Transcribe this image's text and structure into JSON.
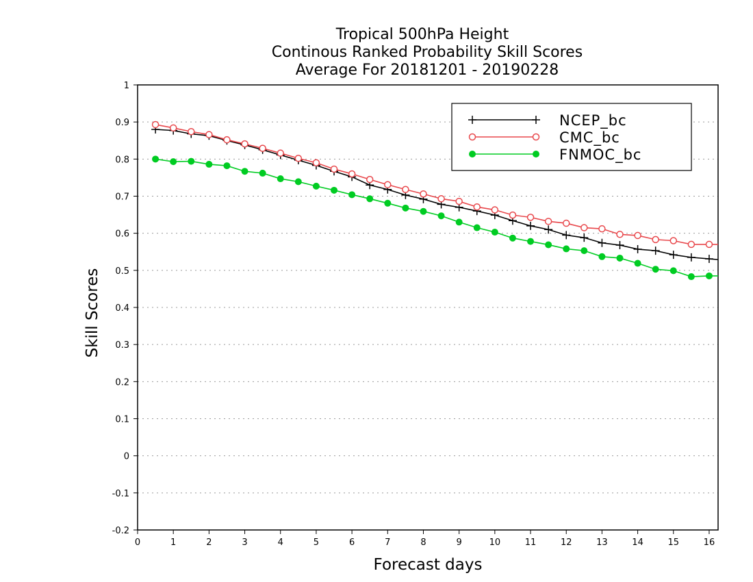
{
  "chart_data": {
    "type": "line",
    "title": [
      "Tropical 500hPa Height",
      "Continous Ranked Probability Skill Scores",
      "Average For 20181201 - 20190228"
    ],
    "xlabel": "Forecast days",
    "ylabel": "Skill Scores",
    "xlim": [
      0,
      16.25
    ],
    "ylim": [
      -0.2,
      1
    ],
    "xticks": [
      0,
      1,
      2,
      3,
      4,
      5,
      6,
      7,
      8,
      9,
      10,
      11,
      12,
      13,
      14,
      15,
      16
    ],
    "yticks": [
      -0.2,
      -0.1,
      0,
      0.1,
      0.2,
      0.3,
      0.4,
      0.5,
      0.6,
      0.7,
      0.8,
      0.9,
      1
    ],
    "ytick_labels": [
      "-0.2",
      "-0.1",
      "0",
      "0.1",
      "0.2",
      "0.3",
      "0.4",
      "0.5",
      "0.6",
      "0.7",
      "0.8",
      "0.9",
      "1"
    ],
    "grid": "horizontal dotted",
    "legend_position": "top-right",
    "x": [
      0.5,
      1,
      1.5,
      2,
      2.5,
      3,
      3.5,
      4,
      4.5,
      5,
      5.5,
      6,
      6.5,
      7,
      7.5,
      8,
      8.5,
      9,
      9.5,
      10,
      10.5,
      11,
      11.5,
      12,
      12.5,
      13,
      13.5,
      14,
      14.5,
      15,
      15.5,
      16,
      16.25
    ],
    "series": [
      {
        "name": "NCEP_bc",
        "color": "#000000",
        "marker": "plus",
        "values": [
          0.88,
          0.877,
          0.868,
          0.863,
          0.85,
          0.838,
          0.825,
          0.811,
          0.797,
          0.783,
          0.767,
          0.752,
          0.73,
          0.718,
          0.703,
          0.692,
          0.678,
          0.67,
          0.66,
          0.649,
          0.634,
          0.62,
          0.61,
          0.595,
          0.588,
          0.574,
          0.568,
          0.557,
          0.553,
          0.542,
          0.535,
          0.531,
          0.529
        ]
      },
      {
        "name": "CMC_bc",
        "color": "#e8474b",
        "marker": "open-circle",
        "values": [
          0.893,
          0.884,
          0.874,
          0.866,
          0.852,
          0.841,
          0.829,
          0.816,
          0.802,
          0.79,
          0.773,
          0.76,
          0.745,
          0.731,
          0.718,
          0.706,
          0.693,
          0.686,
          0.671,
          0.663,
          0.649,
          0.643,
          0.632,
          0.627,
          0.615,
          0.612,
          0.597,
          0.594,
          0.583,
          0.58,
          0.57,
          0.57,
          0.57
        ]
      },
      {
        "name": "FNMOC_bc",
        "color": "#00cc22",
        "marker": "filled-circle",
        "values": [
          0.8,
          0.793,
          0.794,
          0.786,
          0.782,
          0.767,
          0.762,
          0.747,
          0.739,
          0.727,
          0.716,
          0.704,
          0.693,
          0.681,
          0.668,
          0.659,
          0.647,
          0.63,
          0.615,
          0.603,
          0.587,
          0.578,
          0.569,
          0.558,
          0.553,
          0.537,
          0.533,
          0.519,
          0.503,
          0.499,
          0.483,
          0.485,
          0.485
        ]
      }
    ]
  }
}
